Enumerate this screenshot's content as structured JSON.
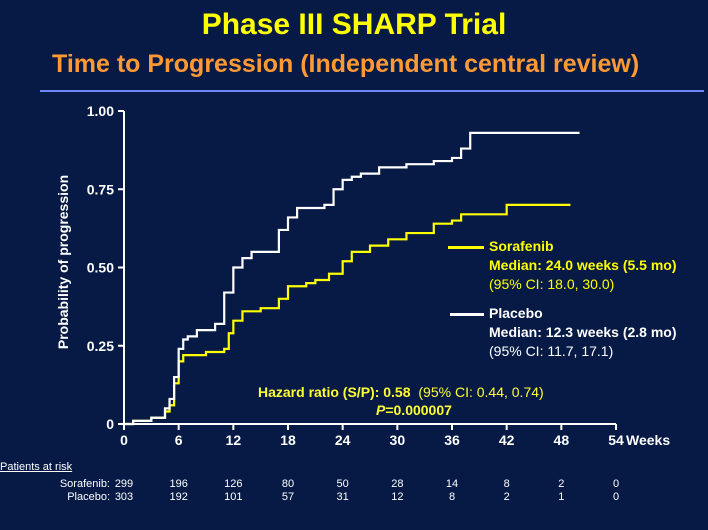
{
  "title": "Phase III SHARP Trial",
  "subtitle": "Time to Progression (Independent central review)",
  "colors": {
    "background": "#061a45",
    "title": "#ffff00",
    "subtitle": "#ff9933",
    "sorafenib": "#ffff00",
    "placebo": "#ffffff",
    "rule": "#6f86ff"
  },
  "chart_data": {
    "type": "line",
    "step": true,
    "ylabel": "Probability of progression",
    "xunit": "Weeks",
    "xlim": [
      0,
      54
    ],
    "ylim": [
      0,
      1
    ],
    "xticks": [
      0,
      6,
      12,
      18,
      24,
      30,
      36,
      42,
      48,
      54
    ],
    "yticks": [
      0,
      0.25,
      0.5,
      0.75,
      1.0
    ],
    "ytick_labels": [
      "0",
      "0.25",
      "0.50",
      "0.75",
      "1.00"
    ],
    "series": [
      {
        "name": "Sorafenib",
        "points": [
          [
            0,
            0
          ],
          [
            1,
            0.01
          ],
          [
            3,
            0.02
          ],
          [
            4.5,
            0.04
          ],
          [
            5,
            0.06
          ],
          [
            5.5,
            0.13
          ],
          [
            6,
            0.2
          ],
          [
            6.5,
            0.22
          ],
          [
            9,
            0.23
          ],
          [
            11,
            0.24
          ],
          [
            11.5,
            0.29
          ],
          [
            12,
            0.33
          ],
          [
            13,
            0.36
          ],
          [
            15,
            0.37
          ],
          [
            17,
            0.4
          ],
          [
            18,
            0.44
          ],
          [
            20,
            0.45
          ],
          [
            21,
            0.46
          ],
          [
            22.5,
            0.48
          ],
          [
            24,
            0.52
          ],
          [
            25,
            0.55
          ],
          [
            27,
            0.57
          ],
          [
            29,
            0.59
          ],
          [
            31,
            0.61
          ],
          [
            34,
            0.64
          ],
          [
            36,
            0.65
          ],
          [
            37,
            0.67
          ],
          [
            42,
            0.7
          ],
          [
            49,
            0.7
          ]
        ]
      },
      {
        "name": "Placebo",
        "points": [
          [
            0,
            0
          ],
          [
            1,
            0.01
          ],
          [
            3,
            0.02
          ],
          [
            4.5,
            0.05
          ],
          [
            5,
            0.08
          ],
          [
            5.5,
            0.15
          ],
          [
            6,
            0.24
          ],
          [
            6.5,
            0.27
          ],
          [
            7,
            0.28
          ],
          [
            8,
            0.3
          ],
          [
            10,
            0.32
          ],
          [
            11,
            0.42
          ],
          [
            12,
            0.5
          ],
          [
            13,
            0.53
          ],
          [
            14,
            0.55
          ],
          [
            17,
            0.62
          ],
          [
            18,
            0.66
          ],
          [
            19,
            0.69
          ],
          [
            22,
            0.7
          ],
          [
            23,
            0.75
          ],
          [
            24,
            0.78
          ],
          [
            25,
            0.79
          ],
          [
            26,
            0.8
          ],
          [
            28,
            0.82
          ],
          [
            31,
            0.83
          ],
          [
            34,
            0.84
          ],
          [
            36,
            0.85
          ],
          [
            37,
            0.88
          ],
          [
            38,
            0.93
          ],
          [
            48,
            0.93
          ],
          [
            50,
            0.93
          ]
        ]
      }
    ]
  },
  "legend": {
    "sorafenib": {
      "name": "Sorafenib",
      "median": "Median: 24.0 weeks (5.5 mo)",
      "ci": "(95% CI: 18.0, 30.0)"
    },
    "placebo": {
      "name": "Placebo",
      "median": "Median: 12.3 weeks (2.8 mo)",
      "ci": "(95% CI: 11.7, 17.1)"
    }
  },
  "hazard": {
    "label": "Hazard ratio (S/P): 0.58",
    "ci": "(95% CI: 0.44, 0.74)",
    "p_letter": "P",
    "p_value": "=0.000007"
  },
  "risk_table": {
    "title": "Patients at risk",
    "rows": [
      {
        "label": "Sorafenib:",
        "values": [
          "299",
          "196",
          "126",
          "80",
          "50",
          "28",
          "14",
          "8",
          "2",
          "0"
        ]
      },
      {
        "label": "Placebo:",
        "values": [
          "303",
          "192",
          "101",
          "57",
          "31",
          "12",
          "8",
          "2",
          "1",
          "0"
        ]
      }
    ]
  }
}
